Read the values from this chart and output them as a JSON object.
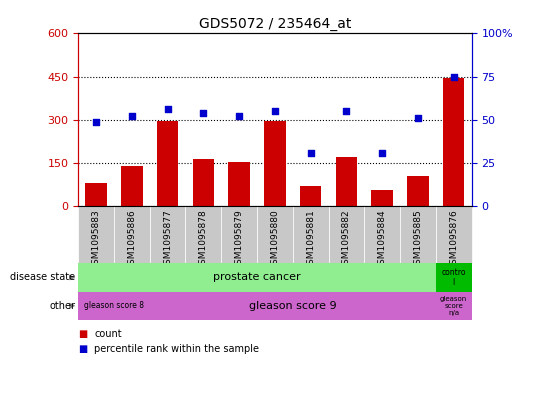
{
  "title": "GDS5072 / 235464_at",
  "samples": [
    "GSM1095883",
    "GSM1095886",
    "GSM1095877",
    "GSM1095878",
    "GSM1095879",
    "GSM1095880",
    "GSM1095881",
    "GSM1095882",
    "GSM1095884",
    "GSM1095885",
    "GSM1095876"
  ],
  "counts": [
    80,
    140,
    295,
    165,
    155,
    295,
    70,
    170,
    55,
    105,
    445
  ],
  "percentile_ranks": [
    49,
    52,
    56,
    54,
    52,
    55,
    31,
    55,
    31,
    51,
    75
  ],
  "ylim_left": [
    0,
    600
  ],
  "ylim_right": [
    0,
    100
  ],
  "yticks_left": [
    0,
    150,
    300,
    450,
    600
  ],
  "yticks_right": [
    0,
    25,
    50,
    75,
    100
  ],
  "bar_color": "#CC0000",
  "dot_color": "#0000CC",
  "left_tick_color": "#CC0000",
  "right_tick_color": "#0000CC",
  "grid_color": "#000000",
  "tick_bg_color": "#C8C8C8",
  "disease_cancer_color": "#90EE90",
  "disease_control_color": "#00BB00",
  "other_color": "#CC66CC",
  "legend_items": [
    {
      "color": "#CC0000",
      "label": "count"
    },
    {
      "color": "#0000CC",
      "label": "percentile rank within the sample"
    }
  ]
}
